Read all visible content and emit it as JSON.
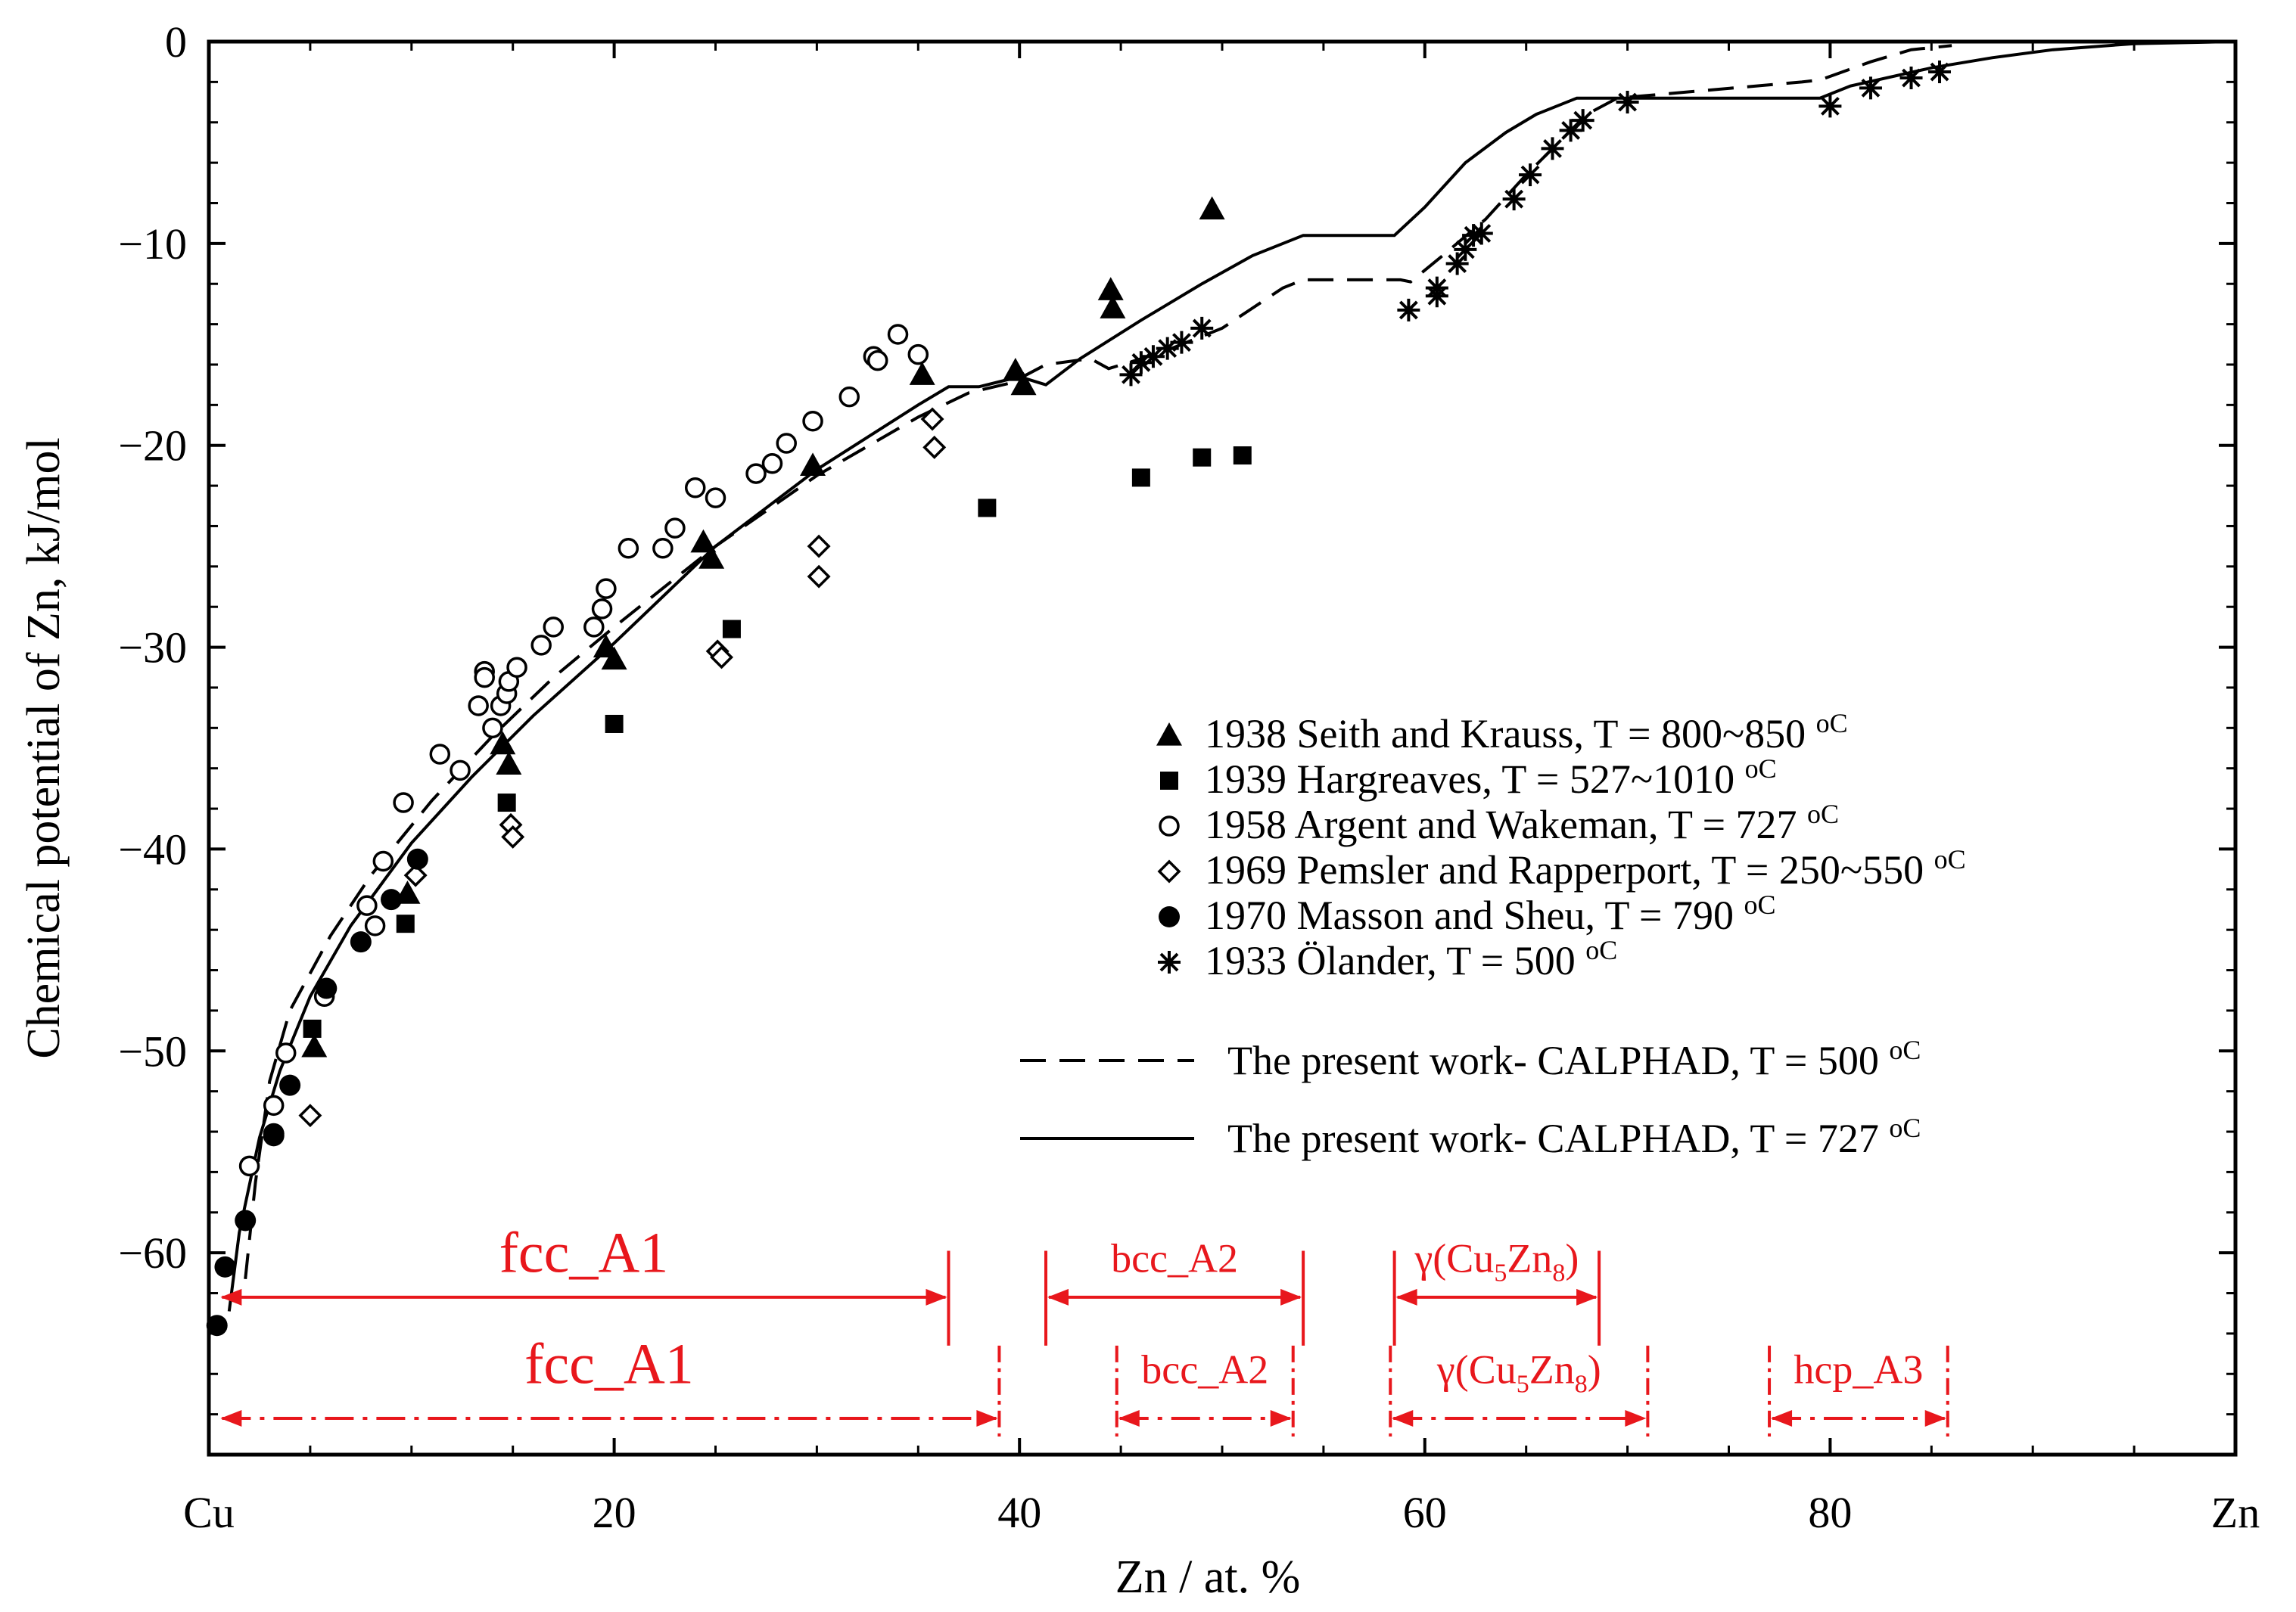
{
  "chart_data": {
    "type": "scatter",
    "xlabel": "Zn / at. %",
    "ylabel": "Chemical potential of  Zn, kJ/mol",
    "xlim": [
      0,
      100
    ],
    "ylim": [
      -70,
      0
    ],
    "x_ticks": [
      {
        "value": 0,
        "label": "Cu"
      },
      {
        "value": 20,
        "label": "20"
      },
      {
        "value": 40,
        "label": "40"
      },
      {
        "value": 60,
        "label": "60"
      },
      {
        "value": 80,
        "label": "80"
      },
      {
        "value": 100,
        "label": "Zn"
      }
    ],
    "y_ticks": [
      {
        "value": 0,
        "label": "0"
      },
      {
        "value": -10,
        "label": "−10"
      },
      {
        "value": -20,
        "label": "−20"
      },
      {
        "value": -30,
        "label": "−30"
      },
      {
        "value": -40,
        "label": "−40"
      },
      {
        "value": -50,
        "label": "−50"
      },
      {
        "value": -60,
        "label": "−60"
      }
    ],
    "series": [
      {
        "name": "1938 Seith and Krauss, T = 800~850",
        "unit": "oC",
        "marker": "triangle",
        "points": [
          [
            5.2,
            -49.8
          ],
          [
            9.8,
            -42.2
          ],
          [
            14.5,
            -34.8
          ],
          [
            14.8,
            -35.8
          ],
          [
            19.6,
            -30.0
          ],
          [
            20.0,
            -30.6
          ],
          [
            24.4,
            -24.8
          ],
          [
            24.8,
            -25.6
          ],
          [
            29.8,
            -21.0
          ],
          [
            35.2,
            -16.5
          ],
          [
            39.8,
            -16.3
          ],
          [
            40.2,
            -17.0
          ],
          [
            44.5,
            -12.3
          ],
          [
            44.6,
            -13.2
          ],
          [
            49.5,
            -8.3
          ]
        ]
      },
      {
        "name": "1939 Hargreaves, T = 527~1010",
        "unit": "oC",
        "marker": "square",
        "points": [
          [
            5.1,
            -48.9
          ],
          [
            9.7,
            -43.7
          ],
          [
            14.7,
            -37.7
          ],
          [
            20.0,
            -33.8
          ],
          [
            25.8,
            -29.1
          ],
          [
            38.4,
            -23.1
          ],
          [
            46.0,
            -21.6
          ],
          [
            49.0,
            -20.6
          ],
          [
            51.0,
            -20.5
          ]
        ]
      },
      {
        "name": "1958 Argent and Wakeman, T = 727",
        "unit": "oC",
        "marker": "circle-open",
        "points": [
          [
            2.0,
            -55.7
          ],
          [
            3.2,
            -52.7
          ],
          [
            3.8,
            -50.1
          ],
          [
            5.7,
            -47.3
          ],
          [
            7.8,
            -42.8
          ],
          [
            8.2,
            -43.8
          ],
          [
            8.6,
            -40.6
          ],
          [
            9.6,
            -37.7
          ],
          [
            11.4,
            -35.3
          ],
          [
            12.4,
            -36.1
          ],
          [
            13.3,
            -32.9
          ],
          [
            13.6,
            -31.2
          ],
          [
            13.6,
            -31.5
          ],
          [
            14.0,
            -34.0
          ],
          [
            14.4,
            -32.9
          ],
          [
            14.7,
            -32.3
          ],
          [
            14.8,
            -31.7
          ],
          [
            15.2,
            -31.0
          ],
          [
            16.4,
            -29.9
          ],
          [
            17.0,
            -29.0
          ],
          [
            19.0,
            -29.0
          ],
          [
            19.4,
            -28.1
          ],
          [
            19.6,
            -27.1
          ],
          [
            20.7,
            -25.1
          ],
          [
            22.4,
            -25.1
          ],
          [
            23.0,
            -24.1
          ],
          [
            24.0,
            -22.1
          ],
          [
            25.0,
            -22.6
          ],
          [
            27.0,
            -21.4
          ],
          [
            27.8,
            -20.9
          ],
          [
            28.5,
            -19.9
          ],
          [
            29.8,
            -18.8
          ],
          [
            31.6,
            -17.6
          ],
          [
            32.8,
            -15.6
          ],
          [
            33.0,
            -15.8
          ],
          [
            34.0,
            -14.5
          ],
          [
            35.0,
            -15.5
          ]
        ]
      },
      {
        "name": "1969 Pemsler and Rapperport, T = 250~550",
        "unit": "oC",
        "marker": "diamond",
        "points": [
          [
            5.0,
            -53.2
          ],
          [
            10.2,
            -41.3
          ],
          [
            14.9,
            -38.8
          ],
          [
            15.0,
            -39.4
          ],
          [
            25.1,
            -30.2
          ],
          [
            25.3,
            -30.5
          ],
          [
            30.1,
            -25.0
          ],
          [
            30.1,
            -26.5
          ],
          [
            35.7,
            -18.7
          ],
          [
            35.8,
            -20.1
          ]
        ]
      },
      {
        "name": "1970 Masson and Sheu, T = 790",
        "unit": "oC",
        "marker": "circle-filled",
        "points": [
          [
            0.4,
            -63.6
          ],
          [
            0.8,
            -60.7
          ],
          [
            1.8,
            -58.4
          ],
          [
            3.2,
            -54.1
          ],
          [
            3.2,
            -54.2
          ],
          [
            4.0,
            -51.7
          ],
          [
            5.8,
            -46.9
          ],
          [
            7.5,
            -44.6
          ],
          [
            9.0,
            -42.5
          ],
          [
            10.3,
            -40.5
          ]
        ]
      },
      {
        "name": "1933 Ölander, T = 500",
        "unit": "oC",
        "marker": "asterisk",
        "points": [
          [
            45.5,
            -16.5
          ],
          [
            46.0,
            -15.9
          ],
          [
            46.6,
            -15.6
          ],
          [
            47.3,
            -15.2
          ],
          [
            48.0,
            -14.9
          ],
          [
            49.0,
            -14.2
          ],
          [
            59.2,
            -13.3
          ],
          [
            60.6,
            -12.2
          ],
          [
            60.6,
            -12.6
          ],
          [
            61.6,
            -11.0
          ],
          [
            62.0,
            -10.3
          ],
          [
            62.4,
            -9.6
          ],
          [
            62.8,
            -9.5
          ],
          [
            64.4,
            -7.8
          ],
          [
            65.2,
            -6.6
          ],
          [
            66.3,
            -5.3
          ],
          [
            67.2,
            -4.4
          ],
          [
            67.8,
            -3.9
          ],
          [
            70.0,
            -3.0
          ],
          [
            80.0,
            -3.2
          ],
          [
            82.0,
            -2.3
          ],
          [
            84.0,
            -1.8
          ],
          [
            85.4,
            -1.5
          ]
        ]
      },
      {
        "name": "The present work- CALPHAD, T = 500",
        "unit": "oC",
        "line": "dashed",
        "points": [
          [
            1.8,
            -61.3
          ],
          [
            2.3,
            -56.5
          ],
          [
            3.0,
            -51.5
          ],
          [
            4.0,
            -48.0
          ],
          [
            6.0,
            -44.3
          ],
          [
            8.0,
            -41.3
          ],
          [
            11.0,
            -37.6
          ],
          [
            14.0,
            -34.4
          ],
          [
            17.0,
            -31.5
          ],
          [
            20.0,
            -29.0
          ],
          [
            25.0,
            -25.0
          ],
          [
            30.0,
            -21.5
          ],
          [
            35.0,
            -18.6
          ],
          [
            37.5,
            -17.4
          ],
          [
            39.6,
            -16.9
          ],
          [
            41.3,
            -16.0
          ],
          [
            43.5,
            -15.7
          ],
          [
            44.4,
            -16.2
          ],
          [
            47.0,
            -15.4
          ],
          [
            50.0,
            -14.2
          ],
          [
            53.0,
            -12.2
          ],
          [
            54.0,
            -11.8
          ],
          [
            58.8,
            -11.8
          ],
          [
            59.3,
            -11.9
          ],
          [
            61.0,
            -10.5
          ],
          [
            63.0,
            -8.8
          ],
          [
            65.0,
            -6.6
          ],
          [
            67.0,
            -4.6
          ],
          [
            68.0,
            -3.6
          ],
          [
            69.5,
            -2.8
          ],
          [
            78.6,
            -2.0
          ],
          [
            79.5,
            -1.9
          ],
          [
            82.0,
            -1.0
          ],
          [
            84.0,
            -0.4
          ],
          [
            86.0,
            -0.2
          ]
        ]
      },
      {
        "name": "The present work- CALPHAD, T = 727",
        "unit": "oC",
        "line": "solid",
        "points": [
          [
            1.0,
            -62.9
          ],
          [
            1.5,
            -59.0
          ],
          [
            2.5,
            -54.3
          ],
          [
            3.5,
            -51.0
          ],
          [
            5.0,
            -47.3
          ],
          [
            7.0,
            -43.8
          ],
          [
            10.0,
            -39.7
          ],
          [
            13.0,
            -36.4
          ],
          [
            16.0,
            -33.4
          ],
          [
            20.0,
            -29.8
          ],
          [
            25.0,
            -25.0
          ],
          [
            30.0,
            -21.2
          ],
          [
            35.0,
            -18.0
          ],
          [
            36.5,
            -17.1
          ],
          [
            38.0,
            -17.1
          ],
          [
            40.0,
            -16.6
          ],
          [
            41.3,
            -17.0
          ],
          [
            43.0,
            -15.7
          ],
          [
            46.0,
            -13.8
          ],
          [
            49.0,
            -12.0
          ],
          [
            51.5,
            -10.6
          ],
          [
            54.0,
            -9.6
          ],
          [
            58.5,
            -9.6
          ],
          [
            60.0,
            -8.2
          ],
          [
            62.0,
            -6.0
          ],
          [
            64.0,
            -4.5
          ],
          [
            65.5,
            -3.6
          ],
          [
            67.5,
            -2.8
          ],
          [
            79.5,
            -2.8
          ],
          [
            81.0,
            -2.2
          ],
          [
            85.0,
            -1.3
          ],
          [
            88.0,
            -0.8
          ],
          [
            91.0,
            -0.4
          ],
          [
            95.0,
            -0.1
          ],
          [
            100.0,
            0.0
          ]
        ]
      }
    ],
    "phase_regions": [
      {
        "label": "fcc_A1",
        "style": "solid",
        "level": 1,
        "x_start": 0.5,
        "x_end": 36.5
      },
      {
        "label": "bcc_A2",
        "style": "solid",
        "level": 1,
        "x_start": 41.3,
        "x_end": 54.0
      },
      {
        "label": "γ(Cu5Zn8)",
        "label_main": "γ(Cu",
        "label_sub1": "5",
        "label_mid": "Zn",
        "label_sub2": "8",
        "label_end": ")",
        "style": "solid",
        "level": 1,
        "x_start": 58.5,
        "x_end": 68.6
      },
      {
        "label": "fcc_A1",
        "style": "dashdot",
        "level": 2,
        "x_start": 0.5,
        "x_end": 39.0
      },
      {
        "label": "bcc_A2",
        "style": "dashdot",
        "level": 2,
        "x_start": 44.8,
        "x_end": 53.5
      },
      {
        "label": "γ(Cu5Zn8)",
        "label_main": "γ(Cu",
        "label_sub1": "5",
        "label_mid": "Zn",
        "label_sub2": "8",
        "label_end": ")",
        "style": "dashdot",
        "level": 2,
        "x_start": 58.3,
        "x_end": 71.0
      },
      {
        "label": "hcp_A3",
        "style": "dashdot",
        "level": 2,
        "x_start": 77.0,
        "x_end": 85.8
      }
    ],
    "legend_placement": "bottom-right",
    "grid": false
  },
  "colors": {
    "axis": "#000000",
    "phase": "#e8171c"
  }
}
